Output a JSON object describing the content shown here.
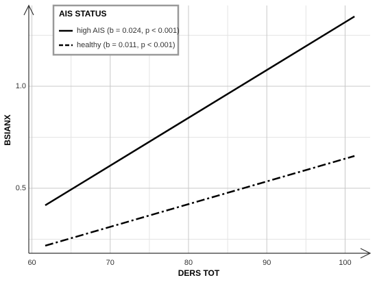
{
  "chart_data": {
    "type": "line",
    "x_label": "DERS TOT",
    "y_label": "BSIANX",
    "legend_title": "AIS STATUS",
    "legend": "top-left",
    "x": [
      61.7,
      101.2
    ],
    "series": [
      {
        "name": "high AIS (b = 0.024, p < 0.001)",
        "color": "#000000",
        "dash": "solid",
        "values": [
          0.416,
          1.342
        ]
      },
      {
        "name": "healthy (b = 0.011, p < 0.001)",
        "color": "#000000",
        "dash": "dashdot",
        "values": [
          0.218,
          0.658
        ]
      }
    ],
    "xlim": [
      59.6,
      103.2
    ],
    "xticks": [
      60,
      70,
      80,
      90,
      100
    ],
    "x_minor_grid": [
      65,
      75,
      85,
      95
    ],
    "ylim": [
      0.181,
      1.396
    ],
    "yticks": [
      0.5,
      {
        "value": 1,
        "label": "1.0"
      }
    ],
    "y_minor_grid": [
      0.25,
      0.75,
      1.25
    ],
    "grid": true
  }
}
